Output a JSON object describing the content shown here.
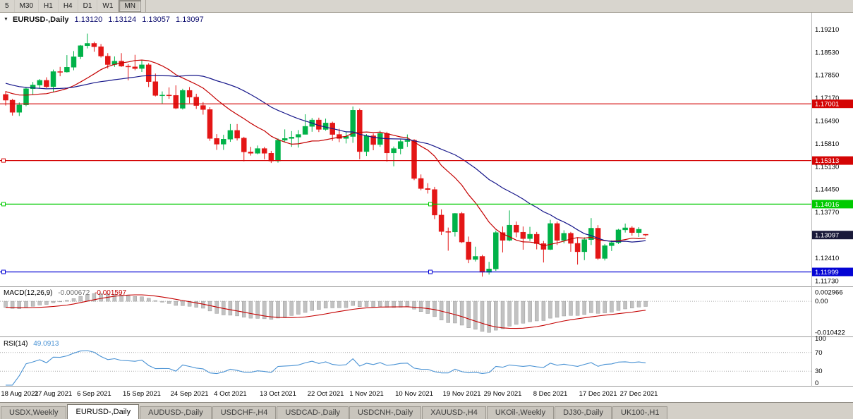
{
  "toolbar": {
    "timeframes": [
      {
        "label": "5",
        "pressed": false
      },
      {
        "label": "M30",
        "pressed": false
      },
      {
        "label": "H1",
        "pressed": false
      },
      {
        "label": "H4",
        "pressed": false
      },
      {
        "label": "D1",
        "pressed": false
      },
      {
        "label": "W1",
        "pressed": false
      },
      {
        "label": "MN",
        "pressed": true
      }
    ]
  },
  "chart_header": {
    "symbol": "EURUSD-,Daily",
    "open": "1.13120",
    "high": "1.13124",
    "low": "1.13057",
    "close": "1.13097"
  },
  "macd_header": {
    "label": "MACD(12,26,9)",
    "value_main": "-0.000672",
    "value_signal": "-0.001597"
  },
  "rsi_header": {
    "label": "RSI(14)",
    "value": "49.0913"
  },
  "tabs": {
    "items": [
      {
        "label": "USDX,Weekly",
        "active": false
      },
      {
        "label": "EURUSD-,Daily",
        "active": true
      },
      {
        "label": "AUDUSD-,Daily",
        "active": false
      },
      {
        "label": "USDCHF-,H4",
        "active": false
      },
      {
        "label": "USDCAD-,Daily",
        "active": false
      },
      {
        "label": "USDCNH-,Daily",
        "active": false
      },
      {
        "label": "XAUUSD-,H4",
        "active": false
      },
      {
        "label": "UKOil-,Weekly",
        "active": false
      },
      {
        "label": "DJ30-,Daily",
        "active": false
      },
      {
        "label": "UK100-,H1",
        "active": false
      }
    ]
  },
  "chart_data": {
    "type": "candlestick",
    "symbol": "EURUSD-",
    "timeframe": "Daily",
    "price_range": [
      1.1159,
      1.1967
    ],
    "price_axis_labels": [
      "1.19210",
      "1.18530",
      "1.17850",
      "1.17170",
      "1.16490",
      "1.15810",
      "1.15130",
      "1.14450",
      "1.13770",
      "1.13090",
      "1.12410",
      "1.11730"
    ],
    "levels": [
      {
        "price": 1.17001,
        "label": "1.17001",
        "color": "#d40404",
        "handles": []
      },
      {
        "price": 1.15313,
        "label": "1.15313",
        "color": "#d40404",
        "handles": [
          "left"
        ]
      },
      {
        "price": 1.14016,
        "label": "1.14016",
        "color": "#00ca00",
        "handles": [
          "left",
          "center"
        ]
      },
      {
        "price": 1.11999,
        "label": "1.11999",
        "color": "#0404d4",
        "handles": [
          "left",
          "center"
        ]
      }
    ],
    "current_price": {
      "price": 1.13097,
      "label": "1.13097",
      "bg": "#1a1a3a"
    },
    "moving_averages": [
      {
        "period": 13,
        "color": "#c40000"
      },
      {
        "period": 26,
        "color": "#16168a"
      }
    ],
    "ma_seed": [
      1.1825,
      1.1818,
      1.1812,
      1.1806,
      1.18,
      1.1795,
      1.179,
      1.1785,
      1.178,
      1.1775,
      1.177,
      1.1766,
      1.1762,
      1.1758,
      1.1754,
      1.175,
      1.1747,
      1.1744,
      1.1741,
      1.1738,
      1.1736,
      1.1734,
      1.1732,
      1.173,
      1.1729,
      1.1728
    ],
    "candles": [
      [
        1.1728,
        1.1738,
        1.1695,
        1.1711
      ],
      [
        1.1711,
        1.1715,
        1.1665,
        1.1675
      ],
      [
        1.1675,
        1.1704,
        1.1664,
        1.1697
      ],
      [
        1.1697,
        1.175,
        1.1693,
        1.1745
      ],
      [
        1.1745,
        1.1765,
        1.1727,
        1.1756
      ],
      [
        1.1756,
        1.1774,
        1.1745,
        1.177
      ],
      [
        1.177,
        1.1779,
        1.1747,
        1.1751
      ],
      [
        1.1751,
        1.1802,
        1.1735,
        1.1796
      ],
      [
        1.1796,
        1.181,
        1.1782,
        1.1795
      ],
      [
        1.1795,
        1.1845,
        1.1793,
        1.1809
      ],
      [
        1.1809,
        1.1857,
        1.18,
        1.184
      ],
      [
        1.184,
        1.1875,
        1.1833,
        1.1873
      ],
      [
        1.1873,
        1.1909,
        1.1865,
        1.188
      ],
      [
        1.188,
        1.1885,
        1.1855,
        1.187
      ],
      [
        1.187,
        1.1878,
        1.1838,
        1.1842
      ],
      [
        1.1842,
        1.1851,
        1.1805,
        1.1817
      ],
      [
        1.1817,
        1.1841,
        1.181,
        1.1827
      ],
      [
        1.1827,
        1.1851,
        1.181,
        1.1812
      ],
      [
        1.1812,
        1.1818,
        1.177,
        1.181
      ],
      [
        1.181,
        1.1846,
        1.18,
        1.1805
      ],
      [
        1.1805,
        1.1831,
        1.1795,
        1.1816
      ],
      [
        1.1816,
        1.1821,
        1.175,
        1.1766
      ],
      [
        1.1766,
        1.179,
        1.1722,
        1.1725
      ],
      [
        1.1725,
        1.1737,
        1.17,
        1.1726
      ],
      [
        1.1726,
        1.1749,
        1.1715,
        1.1725
      ],
      [
        1.1725,
        1.1755,
        1.1684,
        1.1687
      ],
      [
        1.1687,
        1.1745,
        1.1683,
        1.174
      ],
      [
        1.174,
        1.175,
        1.1702,
        1.172
      ],
      [
        1.172,
        1.173,
        1.1685,
        1.1695
      ],
      [
        1.1695,
        1.1705,
        1.1668,
        1.1683
      ],
      [
        1.1683,
        1.169,
        1.159,
        1.1597
      ],
      [
        1.1597,
        1.161,
        1.1563,
        1.158
      ],
      [
        1.158,
        1.1608,
        1.1563,
        1.1595
      ],
      [
        1.1595,
        1.164,
        1.1587,
        1.1621
      ],
      [
        1.1621,
        1.164,
        1.1591,
        1.1598
      ],
      [
        1.1598,
        1.1602,
        1.1529,
        1.1557
      ],
      [
        1.1557,
        1.1572,
        1.1546,
        1.1553
      ],
      [
        1.1553,
        1.1576,
        1.155,
        1.1567
      ],
      [
        1.1567,
        1.1572,
        1.1535,
        1.1553
      ],
      [
        1.1553,
        1.156,
        1.1524,
        1.153
      ],
      [
        1.153,
        1.1597,
        1.1525,
        1.1592
      ],
      [
        1.1592,
        1.1624,
        1.1585,
        1.1597
      ],
      [
        1.1597,
        1.1619,
        1.1572,
        1.1601
      ],
      [
        1.1601,
        1.1622,
        1.157,
        1.1609
      ],
      [
        1.1609,
        1.1669,
        1.1609,
        1.1633
      ],
      [
        1.1633,
        1.1658,
        1.1617,
        1.1652
      ],
      [
        1.1652,
        1.1659,
        1.1616,
        1.1624
      ],
      [
        1.1624,
        1.1656,
        1.162,
        1.1643
      ],
      [
        1.1643,
        1.1647,
        1.159,
        1.1609
      ],
      [
        1.1609,
        1.1626,
        1.1586,
        1.1597
      ],
      [
        1.1597,
        1.1618,
        1.1582,
        1.1603
      ],
      [
        1.1603,
        1.1692,
        1.1584,
        1.1681
      ],
      [
        1.1681,
        1.1686,
        1.1535,
        1.1558
      ],
      [
        1.1558,
        1.161,
        1.1545,
        1.1605
      ],
      [
        1.1605,
        1.1612,
        1.1562,
        1.1579
      ],
      [
        1.1579,
        1.162,
        1.1572,
        1.1612
      ],
      [
        1.1612,
        1.1617,
        1.1528,
        1.1554
      ],
      [
        1.1554,
        1.1573,
        1.1514,
        1.1567
      ],
      [
        1.1567,
        1.1594,
        1.155,
        1.1588
      ],
      [
        1.1588,
        1.1609,
        1.1572,
        1.1592
      ],
      [
        1.1592,
        1.1595,
        1.1473,
        1.1478
      ],
      [
        1.1478,
        1.149,
        1.1443,
        1.1448
      ],
      [
        1.1448,
        1.1464,
        1.1433,
        1.1445
      ],
      [
        1.1445,
        1.1453,
        1.1357,
        1.1369
      ],
      [
        1.1369,
        1.1386,
        1.131,
        1.132
      ],
      [
        1.132,
        1.1332,
        1.1263,
        1.1319
      ],
      [
        1.1319,
        1.1375,
        1.1305,
        1.1374
      ],
      [
        1.1374,
        1.1378,
        1.1286,
        1.1289
      ],
      [
        1.1289,
        1.1305,
        1.1226,
        1.1237
      ],
      [
        1.1237,
        1.1275,
        1.1231,
        1.1246
      ],
      [
        1.1246,
        1.1251,
        1.1186,
        1.1199
      ],
      [
        1.1199,
        1.123,
        1.1192,
        1.1209
      ],
      [
        1.1209,
        1.1323,
        1.1203,
        1.1317
      ],
      [
        1.1317,
        1.1335,
        1.1258,
        1.1294
      ],
      [
        1.1294,
        1.1383,
        1.1291,
        1.1339
      ],
      [
        1.1339,
        1.135,
        1.1303,
        1.1318
      ],
      [
        1.1318,
        1.1335,
        1.1266,
        1.1299
      ],
      [
        1.1299,
        1.1334,
        1.1292,
        1.1312
      ],
      [
        1.1312,
        1.1319,
        1.1267,
        1.1284
      ],
      [
        1.1284,
        1.1292,
        1.1228,
        1.1267
      ],
      [
        1.1267,
        1.1355,
        1.1265,
        1.1344
      ],
      [
        1.1344,
        1.135,
        1.128,
        1.1294
      ],
      [
        1.1294,
        1.1324,
        1.1285,
        1.1315
      ],
      [
        1.1315,
        1.1319,
        1.126,
        1.1285
      ],
      [
        1.1285,
        1.1303,
        1.1222,
        1.126
      ],
      [
        1.126,
        1.1303,
        1.1235,
        1.1296
      ],
      [
        1.1296,
        1.136,
        1.128,
        1.133
      ],
      [
        1.133,
        1.1339,
        1.1236,
        1.124
      ],
      [
        1.124,
        1.1283,
        1.1234,
        1.1278
      ],
      [
        1.1278,
        1.1294,
        1.1262,
        1.1287
      ],
      [
        1.1287,
        1.1328,
        1.1283,
        1.1325
      ],
      [
        1.1325,
        1.1344,
        1.1317,
        1.1331
      ],
      [
        1.1331,
        1.1336,
        1.1308,
        1.1317
      ],
      [
        1.1317,
        1.1333,
        1.1304,
        1.1327
      ],
      [
        1.1312,
        1.13124,
        1.13057,
        1.13097
      ]
    ],
    "macd": {
      "fast": 12,
      "slow": 26,
      "signal": 9,
      "current_main": -0.000672,
      "current_signal": -0.001597,
      "range": [
        -0.0115,
        0.0045
      ],
      "axis": [
        {
          "text": "0.002966",
          "value": 0.002966
        },
        {
          "text": "0.00",
          "value": 0
        },
        {
          "text": "-0.010422",
          "value": -0.010422
        }
      ]
    },
    "rsi": {
      "period": 14,
      "current": 49.0913,
      "range": [
        0,
        100
      ],
      "axis": [
        {
          "text": "100",
          "value": 100
        },
        {
          "text": "70",
          "value": 70
        },
        {
          "text": "30",
          "value": 30
        },
        {
          "text": "0",
          "value": 0
        }
      ]
    },
    "date_ticks": [
      {
        "i": 0,
        "label": "18 Aug 2021"
      },
      {
        "i": 7,
        "label": "27 Aug 2021"
      },
      {
        "i": 13,
        "label": "6 Sep 2021"
      },
      {
        "i": 20,
        "label": "15 Sep 2021"
      },
      {
        "i": 27,
        "label": "24 Sep 2021"
      },
      {
        "i": 33,
        "label": "4 Oct 2021"
      },
      {
        "i": 40,
        "label": "13 Oct 2021"
      },
      {
        "i": 47,
        "label": "22 Oct 2021"
      },
      {
        "i": 53,
        "label": "1 Nov 2021"
      },
      {
        "i": 60,
        "label": "10 Nov 2021"
      },
      {
        "i": 67,
        "label": "19 Nov 2021"
      },
      {
        "i": 73,
        "label": "29 Nov 2021"
      },
      {
        "i": 80,
        "label": "8 Dec 2021"
      },
      {
        "i": 87,
        "label": "17 Dec 2021"
      },
      {
        "i": 93,
        "label": "27 Dec 2021"
      }
    ],
    "colors": {
      "up": "#00b248",
      "down": "#e41616",
      "histogram": "#c2c2c2",
      "rsi_line": "#4992d4",
      "ma_fast": "#c40000",
      "ma_slow": "#16168a"
    }
  }
}
